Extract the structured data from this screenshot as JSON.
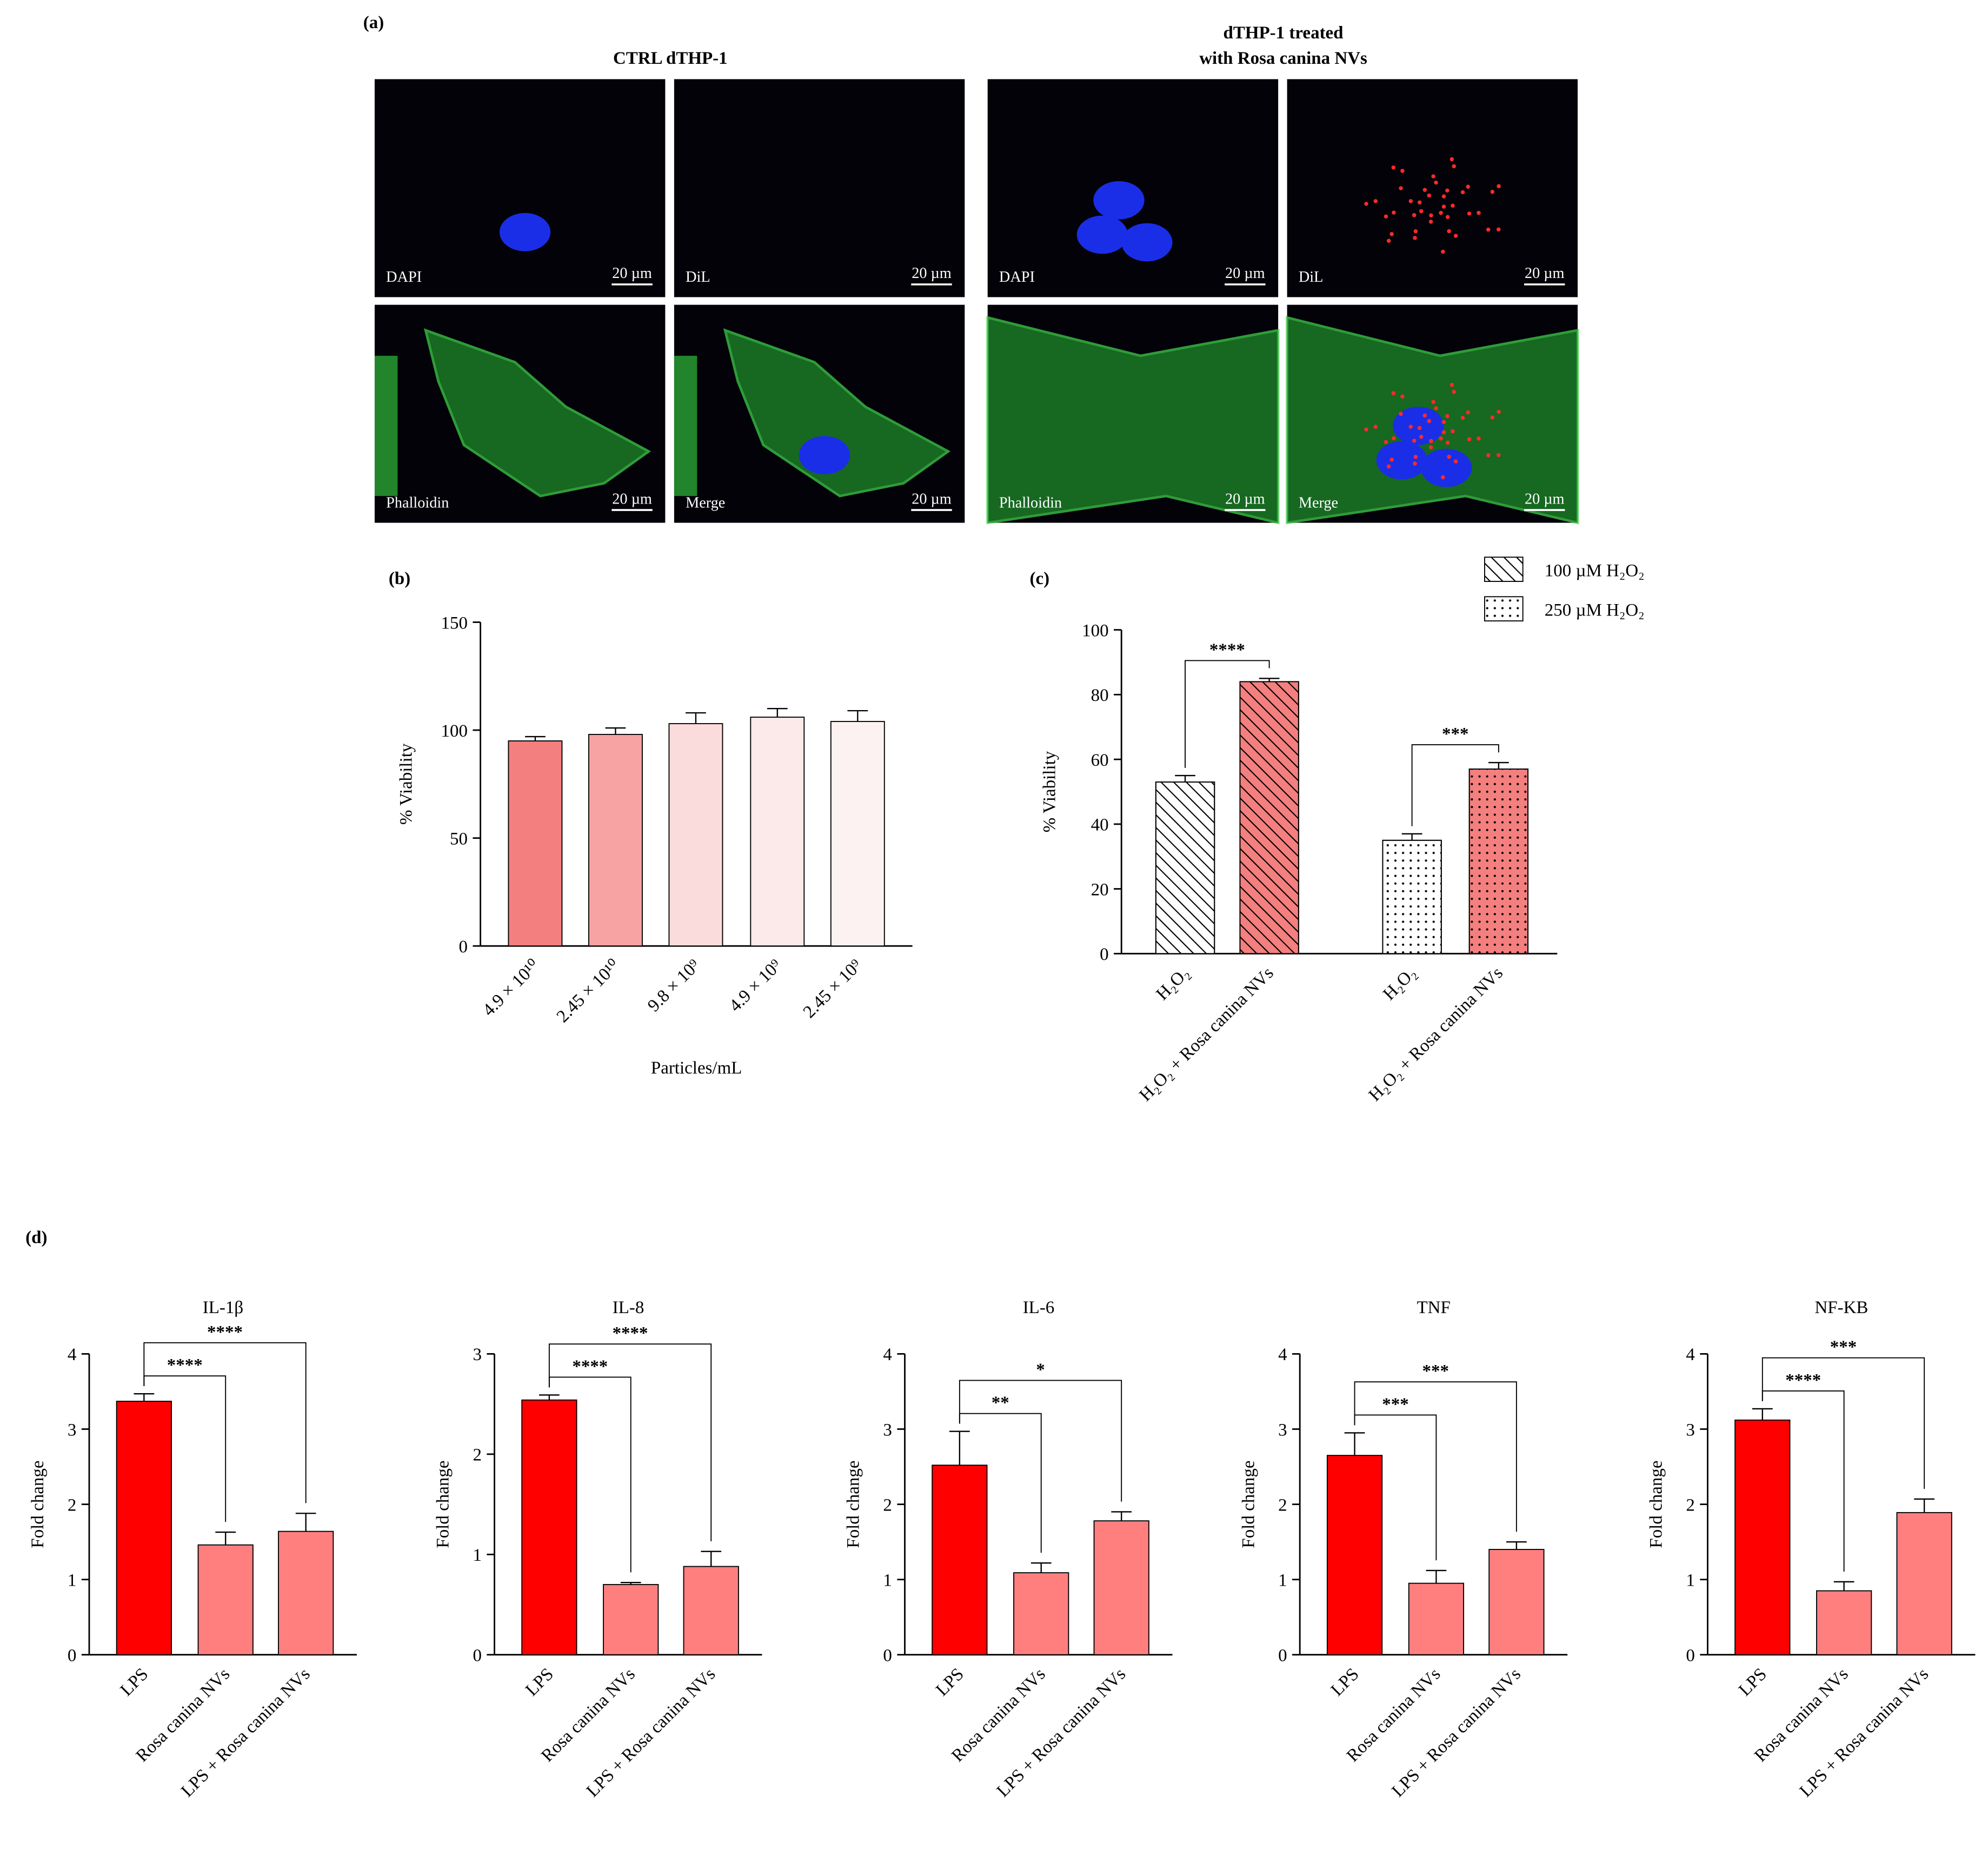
{
  "figure": {
    "panel": "(a)",
    "groups": [
      {
        "title": [
          "CTRL dTHP-1"
        ],
        "images": [
          {
            "label": "DAPI",
            "scale": "20 µm"
          },
          {
            "label": "DiL",
            "scale": "20 µm"
          },
          {
            "label": "Phalloidin",
            "scale": "20 µm"
          },
          {
            "label": "Merge",
            "scale": "20 µm"
          }
        ]
      },
      {
        "title": [
          "dTHP-1 treated",
          "with Rosa canina NVs"
        ],
        "images": [
          {
            "label": "DAPI",
            "scale": "20 µm"
          },
          {
            "label": "DiL",
            "scale": "20 µm"
          },
          {
            "label": "Phalloidin",
            "scale": "20 µm"
          },
          {
            "label": "Merge",
            "scale": "20 µm"
          }
        ]
      }
    ]
  },
  "chart_data": [
    {
      "type": "bar",
      "panel": "(b)",
      "ylabel": "% Viability",
      "xlabel": "Particles/mL",
      "categories": [
        "4.9 × 10¹⁰",
        "2.45 × 10¹⁰",
        "9.8 × 10⁹",
        "4.9 × 10⁹",
        "2.45 × 10⁹"
      ],
      "values": [
        95,
        98,
        103,
        106,
        104
      ],
      "errors": [
        2,
        3,
        5,
        4,
        5
      ],
      "colors": [
        "#f47f7f",
        "#f7a3a3",
        "#fbdcdc",
        "#fce9e9",
        "#fdf2f2"
      ],
      "ylim": [
        0,
        150
      ],
      "yticks": [
        0,
        50,
        100,
        150
      ]
    },
    {
      "type": "bar",
      "panel": "(c)",
      "ylabel": "% Viability",
      "categories": [
        "H₂O₂",
        "H₂O₂ + Rosa canina NVs",
        "H₂O₂",
        "H₂O₂ + Rosa canina NVs"
      ],
      "values": [
        53,
        84,
        35,
        57
      ],
      "errors": [
        2,
        1,
        2,
        2
      ],
      "colors": [
        "#ffffff",
        "#f47f7f",
        "#ffffff",
        "#f47f7f"
      ],
      "patterns": [
        "hatch",
        "hatch",
        "dots",
        "dots"
      ],
      "legend": [
        {
          "name": "100 µM H₂O₂",
          "pattern": "hatch"
        },
        {
          "name": "250 µM H₂O₂",
          "pattern": "dots"
        }
      ],
      "significance": [
        {
          "from": 0,
          "to": 1,
          "label": "****"
        },
        {
          "from": 2,
          "to": 3,
          "label": "***"
        }
      ],
      "ylim": [
        0,
        100
      ],
      "yticks": [
        0,
        20,
        40,
        60,
        80,
        100
      ]
    },
    {
      "type": "bar",
      "panel": "(d)",
      "title": "IL-1β",
      "ylabel": "Fold change",
      "categories": [
        "LPS",
        "Rosa canina NVs",
        "LPS + Rosa canina NVs"
      ],
      "values": [
        3.37,
        1.46,
        1.64
      ],
      "errors": [
        0.1,
        0.17,
        0.24
      ],
      "colors": [
        "#ff0000",
        "#ff7f7f",
        "#ff7f7f"
      ],
      "significance": [
        {
          "from": 0,
          "to": 1,
          "label": "****"
        },
        {
          "from": 0,
          "to": 2,
          "label": "****"
        }
      ],
      "ylim": [
        0,
        4
      ],
      "yticks": [
        0,
        1,
        2,
        3,
        4
      ]
    },
    {
      "type": "bar",
      "title": "IL-8",
      "ylabel": "Fold change",
      "categories": [
        "LPS",
        "Rosa canina NVs",
        "LPS + Rosa canina NVs"
      ],
      "values": [
        2.54,
        0.7,
        0.88
      ],
      "errors": [
        0.05,
        0.02,
        0.15
      ],
      "colors": [
        "#ff0000",
        "#ff7f7f",
        "#ff7f7f"
      ],
      "significance": [
        {
          "from": 0,
          "to": 1,
          "label": "****"
        },
        {
          "from": 0,
          "to": 2,
          "label": "****"
        }
      ],
      "ylim": [
        0,
        3
      ],
      "yticks": [
        0,
        1,
        2,
        3
      ]
    },
    {
      "type": "bar",
      "title": "IL-6",
      "ylabel": "Fold change",
      "categories": [
        "LPS",
        "Rosa canina NVs",
        "LPS + Rosa canina NVs"
      ],
      "values": [
        2.52,
        1.09,
        1.78
      ],
      "errors": [
        0.45,
        0.13,
        0.12
      ],
      "colors": [
        "#ff0000",
        "#ff7f7f",
        "#ff7f7f"
      ],
      "significance": [
        {
          "from": 0,
          "to": 1,
          "label": "**"
        },
        {
          "from": 0,
          "to": 2,
          "label": "*"
        }
      ],
      "ylim": [
        0,
        4
      ],
      "yticks": [
        0,
        1,
        2,
        3,
        4
      ]
    },
    {
      "type": "bar",
      "title": "TNF",
      "ylabel": "Fold change",
      "categories": [
        "LPS",
        "Rosa canina NVs",
        "LPS + Rosa canina NVs"
      ],
      "values": [
        2.65,
        0.95,
        1.4
      ],
      "errors": [
        0.3,
        0.17,
        0.1
      ],
      "colors": [
        "#ff0000",
        "#ff7f7f",
        "#ff7f7f"
      ],
      "significance": [
        {
          "from": 0,
          "to": 1,
          "label": "***"
        },
        {
          "from": 0,
          "to": 2,
          "label": "***"
        }
      ],
      "ylim": [
        0,
        4
      ],
      "yticks": [
        0,
        1,
        2,
        3,
        4
      ]
    },
    {
      "type": "bar",
      "title": "NF-KB",
      "ylabel": "Fold change",
      "categories": [
        "LPS",
        "Rosa canina NVs",
        "LPS + Rosa canina NVs"
      ],
      "values": [
        3.12,
        0.85,
        1.89
      ],
      "errors": [
        0.15,
        0.12,
        0.18
      ],
      "colors": [
        "#ff0000",
        "#ff7f7f",
        "#ff7f7f"
      ],
      "significance": [
        {
          "from": 0,
          "to": 1,
          "label": "****"
        },
        {
          "from": 0,
          "to": 2,
          "label": "***"
        }
      ],
      "ylim": [
        0,
        4
      ],
      "yticks": [
        0,
        1,
        2,
        3,
        4
      ]
    }
  ]
}
